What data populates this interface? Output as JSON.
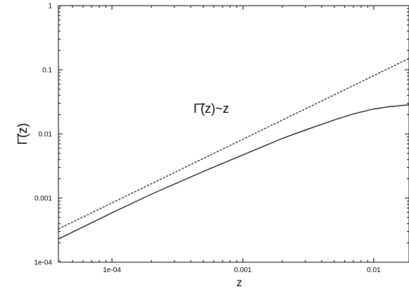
{
  "chart_data": {
    "type": "line",
    "title": "",
    "xlabel": "z",
    "ylabel": "Γ̃(z)",
    "x_scale": "log",
    "y_scale": "log",
    "xlim": [
      3.9e-05,
      0.0186
    ],
    "ylim": [
      0.0001,
      1
    ],
    "x_ticks": [
      {
        "value": 0.0001,
        "label": "1e-04"
      },
      {
        "value": 0.001,
        "label": "0.001"
      },
      {
        "value": 0.01,
        "label": "0.01"
      }
    ],
    "y_ticks": [
      {
        "value": 0.0001,
        "label": "1e-04"
      },
      {
        "value": 0.001,
        "label": "0.001"
      },
      {
        "value": 0.01,
        "label": "0.01"
      },
      {
        "value": 0.1,
        "label": "0.1"
      },
      {
        "value": 1,
        "label": "1"
      }
    ],
    "grid": false,
    "legend": "none",
    "annotations": [
      {
        "text": "Γ̃(z)~z",
        "x": 0.00085,
        "y": 0.021
      }
    ],
    "series": [
      {
        "style": "solid",
        "color": "#000000",
        "x": [
          3.9e-05,
          0.0001,
          0.0002,
          0.0005,
          0.001,
          0.002,
          0.003,
          0.005,
          0.007,
          0.01,
          0.013,
          0.0186
        ],
        "y": [
          0.00023,
          0.00059,
          0.00115,
          0.0026,
          0.0047,
          0.0085,
          0.0115,
          0.0165,
          0.0205,
          0.0245,
          0.0265,
          0.0285
        ]
      },
      {
        "style": "dashed",
        "color": "#000000",
        "x": [
          3.9e-05,
          0.0186
        ],
        "y": [
          0.00033,
          0.15
        ]
      }
    ]
  }
}
